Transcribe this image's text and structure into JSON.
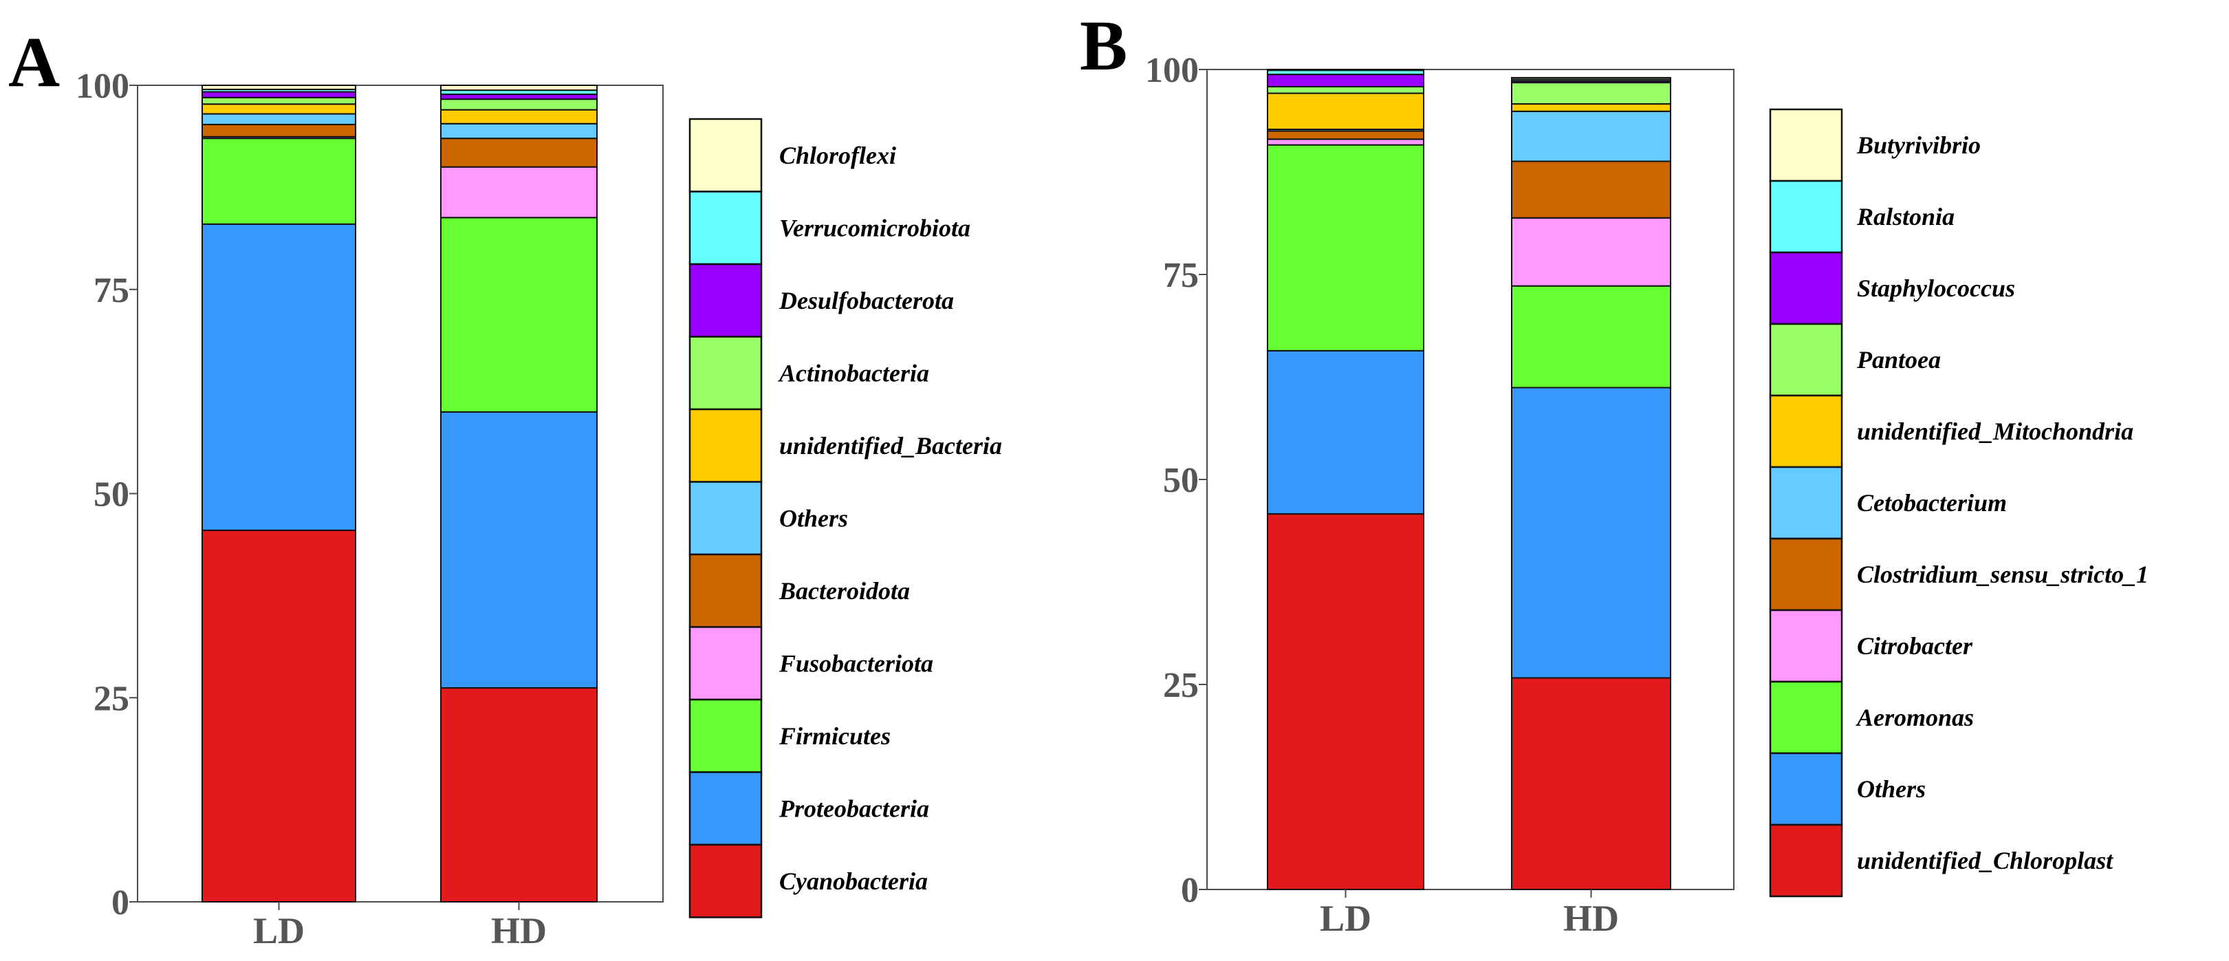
{
  "chart_data": [
    {
      "type": "stacked-bar",
      "panel_label": "A",
      "categories": [
        "LD",
        "HD"
      ],
      "ylim": [
        0,
        100
      ],
      "yticks": [
        "0",
        "25",
        "50",
        "75",
        "100"
      ],
      "series": [
        {
          "name": "Cyanobacteria",
          "color": "#e31a1c",
          "values": [
            45.5,
            26.2
          ]
        },
        {
          "name": "Proteobacteria",
          "color": "#3797fa",
          "values": [
            37.5,
            33.8
          ]
        },
        {
          "name": "Firmicutes",
          "color": "#66ff33",
          "values": [
            10.5,
            23.8
          ]
        },
        {
          "name": "Fusobacteriota",
          "color": "#ff99ff",
          "values": [
            0.2,
            6.2
          ]
        },
        {
          "name": "Bacteroidota",
          "color": "#cc6600",
          "values": [
            1.5,
            3.5
          ]
        },
        {
          "name": "Others",
          "color": "#66ccff",
          "values": [
            1.3,
            1.8
          ]
        },
        {
          "name": "unidentified_Bacteria",
          "color": "#ffcc00",
          "values": [
            1.2,
            1.7
          ]
        },
        {
          "name": "Actinobacteria",
          "color": "#99ff66",
          "values": [
            0.8,
            1.3
          ]
        },
        {
          "name": "Desulfobacterota",
          "color": "#9900ff",
          "values": [
            0.7,
            0.6
          ]
        },
        {
          "name": "Verrucomicrobiota",
          "color": "#66ffff",
          "values": [
            0.3,
            0.5
          ]
        },
        {
          "name": "Chloroflexi",
          "color": "#ffffcc",
          "values": [
            0.5,
            0.6
          ]
        }
      ]
    },
    {
      "type": "stacked-bar",
      "panel_label": "B",
      "categories": [
        "LD",
        "HD"
      ],
      "ylim": [
        0,
        100
      ],
      "yticks": [
        "0",
        "25",
        "50",
        "75",
        "100"
      ],
      "series": [
        {
          "name": "unidentified_Chloroplast",
          "color": "#e31a1c",
          "values": [
            45.8,
            25.8
          ]
        },
        {
          "name": "Others",
          "color": "#3797fa",
          "values": [
            19.9,
            35.4
          ]
        },
        {
          "name": "Aeromonas",
          "color": "#66ff33",
          "values": [
            25.1,
            12.4
          ]
        },
        {
          "name": "Citrobacter",
          "color": "#ff99ff",
          "values": [
            0.7,
            8.3
          ]
        },
        {
          "name": "Clostridium_sensu_stricto_1",
          "color": "#cc6600",
          "values": [
            1.0,
            6.9
          ]
        },
        {
          "name": "Cetobacterium",
          "color": "#66ccff",
          "values": [
            0.2,
            6.1
          ]
        },
        {
          "name": "unidentified_Mitochondria",
          "color": "#ffcc00",
          "values": [
            4.4,
            0.9
          ]
        },
        {
          "name": "Pantoea",
          "color": "#99ff66",
          "values": [
            0.8,
            2.6
          ]
        },
        {
          "name": "Staphylococcus",
          "color": "#9900ff",
          "values": [
            1.5,
            0.2
          ]
        },
        {
          "name": "Ralstonia",
          "color": "#66ffff",
          "values": [
            0.5,
            0.2
          ]
        },
        {
          "name": "Butyrivibrio",
          "color": "#ffffcc",
          "values": [
            0.1,
            0.2
          ]
        }
      ]
    }
  ]
}
